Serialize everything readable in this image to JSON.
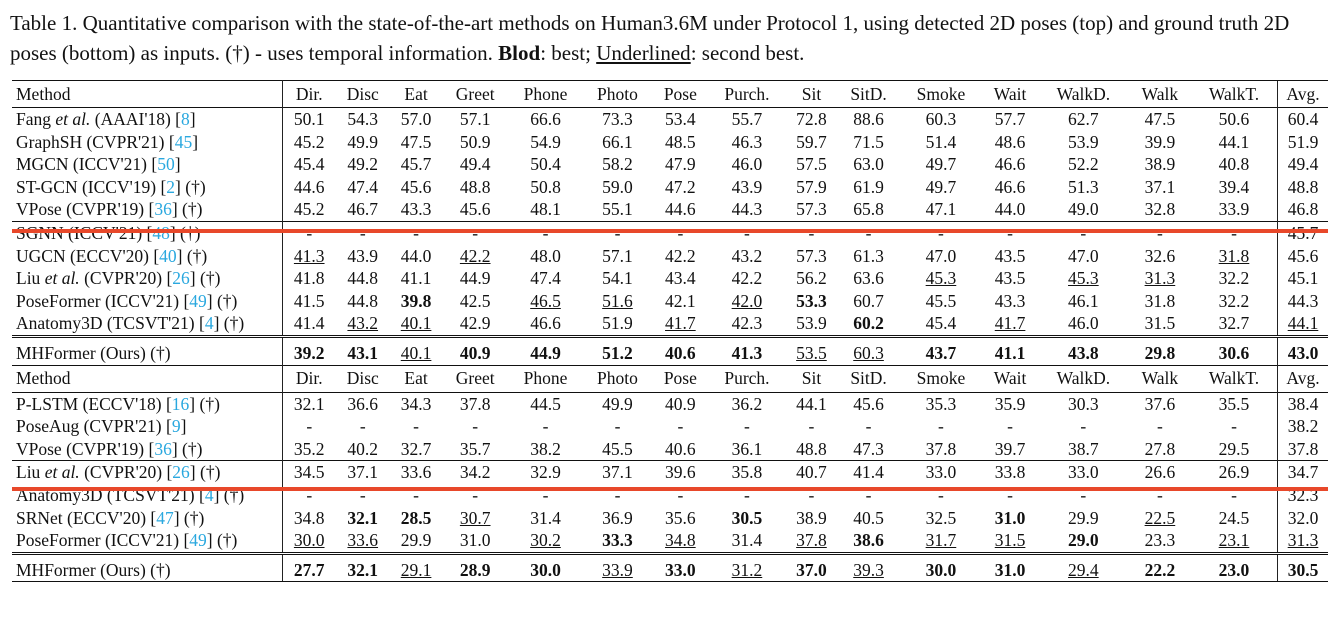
{
  "caption": {
    "part1": "Table 1. Quantitative comparison with the state-of-the-art methods on Human3.6M under Protocol 1, using detected 2D poses (top) and ground truth 2D poses (bottom) as inputs. (†) - uses temporal information. ",
    "best_label": "Blod",
    "part2": ": best; ",
    "second_label": "Underlined",
    "part3": ": second best."
  },
  "colors": {
    "ref": "#2aa8df",
    "highlight_line": "#e8482a"
  },
  "columns": [
    "Method",
    "Dir.",
    "Disc",
    "Eat",
    "Greet",
    "Phone",
    "Photo",
    "Pose",
    "Purch.",
    "Sit",
    "SitD.",
    "Smoke",
    "Wait",
    "WalkD.",
    "Walk",
    "WalkT.",
    "Avg."
  ],
  "top": {
    "rows": [
      {
        "pre": "Fang ",
        "em": "et al.",
        "post": " (AAAI'18) [",
        "ref": "8",
        "tail": "]",
        "v": [
          "50.1",
          "54.3",
          "57.0",
          "57.1",
          "66.6",
          "73.3",
          "53.4",
          "55.7",
          "72.8",
          "88.6",
          "60.3",
          "57.7",
          "62.7",
          "47.5",
          "50.6",
          "60.4"
        ]
      },
      {
        "pre": "GraphSH (CVPR'21) [",
        "ref": "45",
        "tail": "]",
        "v": [
          "45.2",
          "49.9",
          "47.5",
          "50.9",
          "54.9",
          "66.1",
          "48.5",
          "46.3",
          "59.7",
          "71.5",
          "51.4",
          "48.6",
          "53.9",
          "39.9",
          "44.1",
          "51.9"
        ]
      },
      {
        "pre": "MGCN (ICCV'21) [",
        "ref": "50",
        "tail": "]",
        "v": [
          "45.4",
          "49.2",
          "45.7",
          "49.4",
          "50.4",
          "58.2",
          "47.9",
          "46.0",
          "57.5",
          "63.0",
          "49.7",
          "46.6",
          "52.2",
          "38.9",
          "40.8",
          "49.4"
        ]
      },
      {
        "pre": "ST-GCN (ICCV'19) [",
        "ref": "2",
        "tail": "] (†)",
        "v": [
          "44.6",
          "47.4",
          "45.6",
          "48.8",
          "50.8",
          "59.0",
          "47.2",
          "43.9",
          "57.9",
          "61.9",
          "49.7",
          "46.6",
          "51.3",
          "37.1",
          "39.4",
          "48.8"
        ]
      },
      {
        "pre": "VPose (CVPR'19) [",
        "ref": "36",
        "tail": "] (†)",
        "v": [
          "45.2",
          "46.7",
          "43.3",
          "45.6",
          "48.1",
          "55.1",
          "44.6",
          "44.3",
          "57.3",
          "65.8",
          "47.1",
          "44.0",
          "49.0",
          "32.8",
          "33.9",
          "46.8"
        ]
      },
      {
        "pre": "SGNN (ICCV'21) [",
        "ref": "48",
        "tail": "] (†)",
        "v": [
          "-",
          "-",
          "-",
          "-",
          "-",
          "-",
          "-",
          "-",
          "-",
          "-",
          "-",
          "-",
          "-",
          "-",
          "-",
          "45.7"
        ]
      },
      {
        "pre": "UGCN (ECCV'20) [",
        "ref": "40",
        "tail": "] (†)",
        "v": [
          "41.3",
          "43.9",
          "44.0",
          "42.2",
          "48.0",
          "57.1",
          "42.2",
          "43.2",
          "57.3",
          "61.3",
          "47.0",
          "43.5",
          "47.0",
          "32.6",
          "31.8",
          "45.6"
        ],
        "u": [
          0,
          3,
          14
        ]
      },
      {
        "pre": "Liu ",
        "em": "et al.",
        "post": " (CVPR'20) [",
        "ref": "26",
        "tail": "] (†)",
        "v": [
          "41.8",
          "44.8",
          "41.1",
          "44.9",
          "47.4",
          "54.1",
          "43.4",
          "42.2",
          "56.2",
          "63.6",
          "45.3",
          "43.5",
          "45.3",
          "31.3",
          "32.2",
          "45.1"
        ],
        "u": [
          10,
          12,
          13
        ]
      },
      {
        "pre": "PoseFormer (ICCV'21) [",
        "ref": "49",
        "tail": "] (†)",
        "v": [
          "41.5",
          "44.8",
          "39.8",
          "42.5",
          "46.5",
          "51.6",
          "42.1",
          "42.0",
          "53.3",
          "60.7",
          "45.5",
          "43.3",
          "46.1",
          "31.8",
          "32.2",
          "44.3"
        ],
        "b": [
          2,
          8
        ],
        "u": [
          4,
          5,
          7
        ]
      },
      {
        "pre": "Anatomy3D (TCSVT'21) [",
        "ref": "4",
        "tail": "] (†)",
        "v": [
          "41.4",
          "43.2",
          "40.1",
          "42.9",
          "46.6",
          "51.9",
          "41.7",
          "42.3",
          "53.9",
          "60.2",
          "45.4",
          "41.7",
          "46.0",
          "31.5",
          "32.7",
          "44.1"
        ],
        "b": [
          9
        ],
        "u": [
          1,
          2,
          6,
          11,
          15
        ]
      }
    ],
    "ours": {
      "pre": "MHFormer (Ours) (†)",
      "v": [
        "39.2",
        "43.1",
        "40.1",
        "40.9",
        "44.9",
        "51.2",
        "40.6",
        "41.3",
        "53.5",
        "60.3",
        "43.7",
        "41.1",
        "43.8",
        "29.8",
        "30.6",
        "43.0"
      ],
      "b": [
        0,
        1,
        3,
        4,
        5,
        6,
        7,
        10,
        11,
        12,
        13,
        14,
        15
      ],
      "u": [
        2,
        8,
        9
      ]
    }
  },
  "bottom": {
    "rows": [
      {
        "pre": "P-LSTM (ECCV'18) [",
        "ref": "16",
        "tail": "] (†)",
        "v": [
          "32.1",
          "36.6",
          "34.3",
          "37.8",
          "44.5",
          "49.9",
          "40.9",
          "36.2",
          "44.1",
          "45.6",
          "35.3",
          "35.9",
          "30.3",
          "37.6",
          "35.5",
          "38.4"
        ]
      },
      {
        "pre": "PoseAug (CVPR'21) [",
        "ref": "9",
        "tail": "]",
        "v": [
          "-",
          "-",
          "-",
          "-",
          "-",
          "-",
          "-",
          "-",
          "-",
          "-",
          "-",
          "-",
          "-",
          "-",
          "-",
          "38.2"
        ]
      },
      {
        "pre": "VPose (CVPR'19) [",
        "ref": "36",
        "tail": "] (†)",
        "v": [
          "35.2",
          "40.2",
          "32.7",
          "35.7",
          "38.2",
          "45.5",
          "40.6",
          "36.1",
          "48.8",
          "47.3",
          "37.8",
          "39.7",
          "38.7",
          "27.8",
          "29.5",
          "37.8"
        ]
      },
      {
        "pre": "Liu ",
        "em": "et al.",
        "post": " (CVPR'20) [",
        "ref": "26",
        "tail": "] (†)",
        "v": [
          "34.5",
          "37.1",
          "33.6",
          "34.2",
          "32.9",
          "37.1",
          "39.6",
          "35.8",
          "40.7",
          "41.4",
          "33.0",
          "33.8",
          "33.0",
          "26.6",
          "26.9",
          "34.7"
        ]
      },
      {
        "pre": "Anatomy3D (TCSVT'21) [",
        "ref": "4",
        "tail": "] (†)",
        "v": [
          "-",
          "-",
          "-",
          "-",
          "-",
          "-",
          "-",
          "-",
          "-",
          "-",
          "-",
          "-",
          "-",
          "-",
          "-",
          "32.3"
        ]
      },
      {
        "pre": "SRNet (ECCV'20) [",
        "ref": "47",
        "tail": "] (†)",
        "v": [
          "34.8",
          "32.1",
          "28.5",
          "30.7",
          "31.4",
          "36.9",
          "35.6",
          "30.5",
          "38.9",
          "40.5",
          "32.5",
          "31.0",
          "29.9",
          "22.5",
          "24.5",
          "32.0"
        ],
        "b": [
          1,
          2,
          7,
          11
        ],
        "u": [
          3,
          13
        ]
      },
      {
        "pre": "PoseFormer (ICCV'21) [",
        "ref": "49",
        "tail": "] (†)",
        "v": [
          "30.0",
          "33.6",
          "29.9",
          "31.0",
          "30.2",
          "33.3",
          "34.8",
          "31.4",
          "37.8",
          "38.6",
          "31.7",
          "31.5",
          "29.0",
          "23.3",
          "23.1",
          "31.3"
        ],
        "b": [
          5,
          9,
          12
        ],
        "u": [
          0,
          1,
          4,
          6,
          8,
          10,
          11,
          14,
          15
        ]
      }
    ],
    "ours": {
      "pre": "MHFormer (Ours) (†)",
      "v": [
        "27.7",
        "32.1",
        "29.1",
        "28.9",
        "30.0",
        "33.9",
        "33.0",
        "31.2",
        "37.0",
        "39.3",
        "30.0",
        "31.0",
        "29.4",
        "22.2",
        "23.0",
        "30.5"
      ],
      "b": [
        0,
        1,
        3,
        4,
        6,
        8,
        10,
        11,
        13,
        14,
        15
      ],
      "u": [
        2,
        5,
        7,
        9,
        12
      ]
    }
  }
}
